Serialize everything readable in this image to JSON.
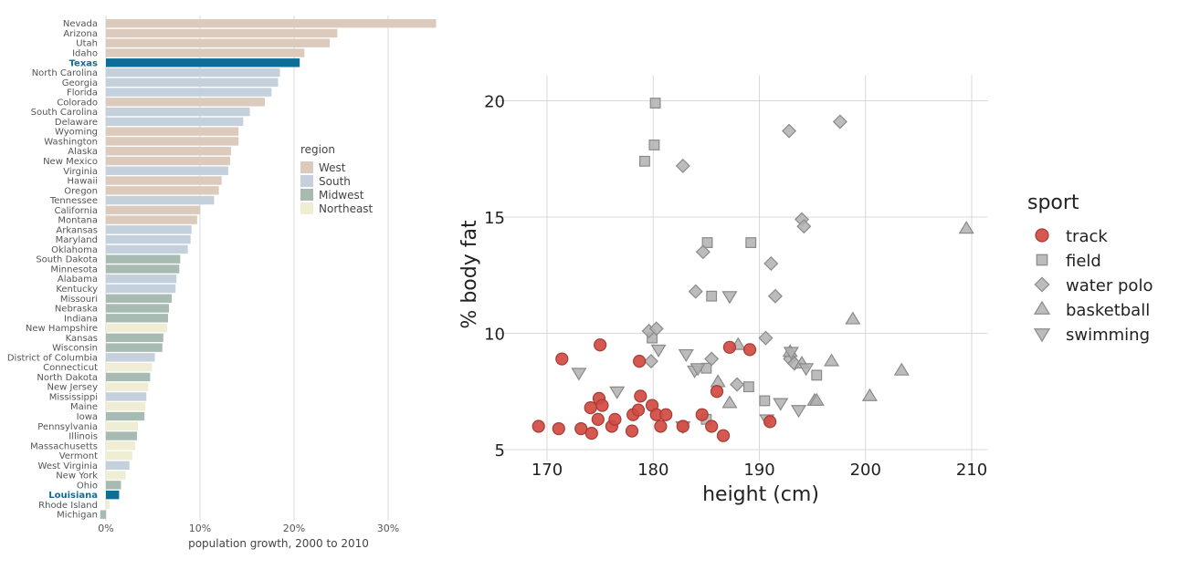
{
  "chart_data": [
    {
      "type": "bar",
      "orientation": "horizontal",
      "xlabel": "population growth, 2000 to 2010",
      "xlim": [
        0,
        0.36
      ],
      "xticks": [
        0,
        0.1,
        0.2,
        0.3
      ],
      "xtick_labels": [
        "0%",
        "10%",
        "20%",
        "30%"
      ],
      "grid": true,
      "legend": {
        "title": "region",
        "position": "right",
        "entries": [
          {
            "name": "West",
            "color": "#dccbbd"
          },
          {
            "name": "South",
            "color": "#c4d1dc"
          },
          {
            "name": "Midwest",
            "color": "#a7bbb2"
          },
          {
            "name": "Northeast",
            "color": "#efedd3"
          }
        ]
      },
      "highlight_color": "#0e6e97",
      "highlighted": [
        "Texas",
        "Louisiana"
      ],
      "data": [
        {
          "state": "Nevada",
          "value": 0.351,
          "region": "West"
        },
        {
          "state": "Arizona",
          "value": 0.246,
          "region": "West"
        },
        {
          "state": "Utah",
          "value": 0.238,
          "region": "West"
        },
        {
          "state": "Idaho",
          "value": 0.211,
          "region": "West"
        },
        {
          "state": "Texas",
          "value": 0.206,
          "region": "South"
        },
        {
          "state": "North Carolina",
          "value": 0.185,
          "region": "South"
        },
        {
          "state": "Georgia",
          "value": 0.183,
          "region": "South"
        },
        {
          "state": "Florida",
          "value": 0.176,
          "region": "South"
        },
        {
          "state": "Colorado",
          "value": 0.169,
          "region": "West"
        },
        {
          "state": "South Carolina",
          "value": 0.153,
          "region": "South"
        },
        {
          "state": "Delaware",
          "value": 0.146,
          "region": "South"
        },
        {
          "state": "Wyoming",
          "value": 0.141,
          "region": "West"
        },
        {
          "state": "Washington",
          "value": 0.141,
          "region": "West"
        },
        {
          "state": "Alaska",
          "value": 0.133,
          "region": "West"
        },
        {
          "state": "New Mexico",
          "value": 0.132,
          "region": "West"
        },
        {
          "state": "Virginia",
          "value": 0.13,
          "region": "South"
        },
        {
          "state": "Hawaii",
          "value": 0.123,
          "region": "West"
        },
        {
          "state": "Oregon",
          "value": 0.12,
          "region": "West"
        },
        {
          "state": "Tennessee",
          "value": 0.115,
          "region": "South"
        },
        {
          "state": "California",
          "value": 0.1,
          "region": "West"
        },
        {
          "state": "Montana",
          "value": 0.097,
          "region": "West"
        },
        {
          "state": "Arkansas",
          "value": 0.091,
          "region": "South"
        },
        {
          "state": "Maryland",
          "value": 0.09,
          "region": "South"
        },
        {
          "state": "Oklahoma",
          "value": 0.087,
          "region": "South"
        },
        {
          "state": "South Dakota",
          "value": 0.079,
          "region": "Midwest"
        },
        {
          "state": "Minnesota",
          "value": 0.078,
          "region": "Midwest"
        },
        {
          "state": "Alabama",
          "value": 0.075,
          "region": "South"
        },
        {
          "state": "Kentucky",
          "value": 0.074,
          "region": "South"
        },
        {
          "state": "Missouri",
          "value": 0.07,
          "region": "Midwest"
        },
        {
          "state": "Nebraska",
          "value": 0.067,
          "region": "Midwest"
        },
        {
          "state": "Indiana",
          "value": 0.066,
          "region": "Midwest"
        },
        {
          "state": "New Hampshire",
          "value": 0.065,
          "region": "Northeast"
        },
        {
          "state": "Kansas",
          "value": 0.061,
          "region": "Midwest"
        },
        {
          "state": "Wisconsin",
          "value": 0.06,
          "region": "Midwest"
        },
        {
          "state": "District of Columbia",
          "value": 0.052,
          "region": "South"
        },
        {
          "state": "Connecticut",
          "value": 0.049,
          "region": "Northeast"
        },
        {
          "state": "North Dakota",
          "value": 0.047,
          "region": "Midwest"
        },
        {
          "state": "New Jersey",
          "value": 0.045,
          "region": "Northeast"
        },
        {
          "state": "Mississippi",
          "value": 0.043,
          "region": "South"
        },
        {
          "state": "Maine",
          "value": 0.042,
          "region": "Northeast"
        },
        {
          "state": "Iowa",
          "value": 0.041,
          "region": "Midwest"
        },
        {
          "state": "Pennsylvania",
          "value": 0.034,
          "region": "Northeast"
        },
        {
          "state": "Illinois",
          "value": 0.033,
          "region": "Midwest"
        },
        {
          "state": "Massachusetts",
          "value": 0.031,
          "region": "Northeast"
        },
        {
          "state": "Vermont",
          "value": 0.028,
          "region": "Northeast"
        },
        {
          "state": "West Virginia",
          "value": 0.025,
          "region": "South"
        },
        {
          "state": "New York",
          "value": 0.021,
          "region": "Northeast"
        },
        {
          "state": "Ohio",
          "value": 0.016,
          "region": "Midwest"
        },
        {
          "state": "Louisiana",
          "value": 0.014,
          "region": "South"
        },
        {
          "state": "Rhode Island",
          "value": 0.004,
          "region": "Northeast"
        },
        {
          "state": "Michigan",
          "value": -0.006,
          "region": "Midwest"
        }
      ]
    },
    {
      "type": "scatter",
      "xlabel": "height (cm)",
      "ylabel": "% body fat",
      "xlim": [
        165,
        211.5
      ],
      "ylim": [
        4.5,
        21.1
      ],
      "xticks": [
        170,
        180,
        190,
        200,
        210
      ],
      "yticks": [
        5,
        10,
        15,
        20
      ],
      "grid": true,
      "legend": {
        "title": "sport",
        "position": "right"
      },
      "series": [
        {
          "name": "track",
          "shape": "circle",
          "color": "#d14b42",
          "stroke": "#a63b35",
          "points": [
            [
              169.2,
              6.0
            ],
            [
              171.1,
              5.9
            ],
            [
              171.4,
              8.9
            ],
            [
              173.2,
              5.9
            ],
            [
              174.1,
              6.8
            ],
            [
              174.2,
              5.7
            ],
            [
              174.8,
              6.3
            ],
            [
              174.9,
              7.2
            ],
            [
              175.0,
              9.5
            ],
            [
              175.2,
              6.9
            ],
            [
              176.1,
              6.0
            ],
            [
              176.4,
              6.3
            ],
            [
              178.0,
              5.8
            ],
            [
              178.1,
              6.5
            ],
            [
              178.6,
              6.7
            ],
            [
              178.7,
              8.8
            ],
            [
              178.8,
              7.3
            ],
            [
              179.9,
              6.9
            ],
            [
              180.3,
              6.5
            ],
            [
              180.7,
              6.0
            ],
            [
              181.2,
              6.5
            ],
            [
              182.8,
              6.0
            ],
            [
              184.6,
              6.5
            ],
            [
              185.5,
              6.0
            ],
            [
              186.0,
              7.5
            ],
            [
              186.6,
              5.6
            ],
            [
              187.2,
              9.4
            ],
            [
              189.1,
              9.3
            ],
            [
              191.0,
              6.2
            ]
          ]
        },
        {
          "name": "field",
          "shape": "square",
          "color": "#b0b0b0",
          "stroke": "#8a8a8a",
          "points": [
            [
              179.2,
              17.4
            ],
            [
              180.2,
              19.9
            ],
            [
              180.1,
              18.1
            ],
            [
              185.1,
              13.9
            ],
            [
              185.5,
              11.6
            ],
            [
              189.2,
              13.9
            ],
            [
              179.9,
              9.8
            ],
            [
              185.0,
              8.5
            ],
            [
              189.0,
              7.7
            ],
            [
              190.5,
              7.1
            ],
            [
              185.0,
              6.3
            ],
            [
              195.4,
              8.2
            ]
          ]
        },
        {
          "name": "water polo",
          "shape": "diamond",
          "color": "#b0b0b0",
          "stroke": "#8a8a8a",
          "points": [
            [
              182.8,
              17.2
            ],
            [
              192.8,
              18.7
            ],
            [
              197.6,
              19.1
            ],
            [
              194.0,
              14.9
            ],
            [
              194.2,
              14.6
            ],
            [
              184.7,
              13.5
            ],
            [
              191.1,
              13.0
            ],
            [
              184.0,
              11.8
            ],
            [
              191.5,
              11.6
            ],
            [
              179.6,
              10.1
            ],
            [
              180.3,
              10.2
            ],
            [
              179.8,
              8.8
            ],
            [
              185.5,
              8.9
            ],
            [
              187.9,
              7.8
            ],
            [
              190.6,
              9.8
            ],
            [
              192.9,
              8.9
            ],
            [
              193.3,
              8.7
            ]
          ]
        },
        {
          "name": "basketball",
          "shape": "triangle-up",
          "color": "#b0b0b0",
          "stroke": "#8a8a8a",
          "points": [
            [
              209.5,
              14.5
            ],
            [
              198.8,
              10.6
            ],
            [
              188.0,
              9.5
            ],
            [
              192.9,
              9.2
            ],
            [
              194.0,
              8.7
            ],
            [
              196.8,
              8.8
            ],
            [
              203.4,
              8.4
            ],
            [
              186.1,
              7.9
            ],
            [
              187.2,
              7.0
            ],
            [
              195.2,
              7.1
            ],
            [
              195.4,
              7.1
            ],
            [
              200.4,
              7.3
            ]
          ]
        },
        {
          "name": "swimming",
          "shape": "triangle-down",
          "color": "#b0b0b0",
          "stroke": "#8a8a8a",
          "points": [
            [
              187.2,
              11.6
            ],
            [
              180.5,
              9.3
            ],
            [
              183.1,
              9.1
            ],
            [
              173.0,
              8.3
            ],
            [
              183.9,
              8.4
            ],
            [
              184.2,
              8.5
            ],
            [
              193.0,
              9.2
            ],
            [
              194.4,
              8.5
            ],
            [
              176.6,
              7.5
            ],
            [
              192.0,
              7.0
            ],
            [
              193.7,
              6.7
            ],
            [
              190.7,
              6.3
            ],
            [
              182.8,
              6.0
            ]
          ]
        }
      ]
    }
  ]
}
